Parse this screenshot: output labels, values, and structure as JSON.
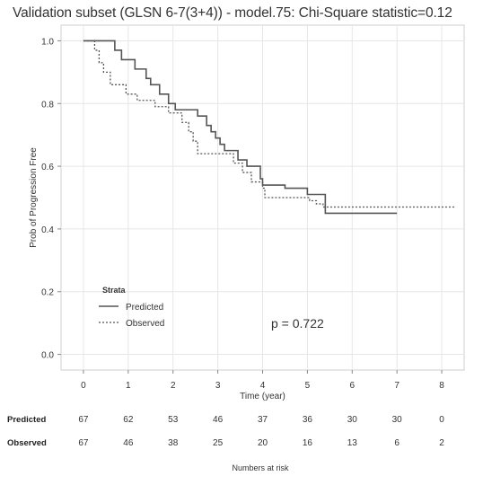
{
  "chart_data": {
    "type": "line",
    "title": "Validation subset (GLSN 6-7(3+4)) - model.75: Chi-Square statistic=0.12",
    "xlabel": "Time (year)",
    "ylabel": "Prob of Progression Free",
    "xlim": [
      -0.5,
      8.5
    ],
    "ylim": [
      -0.05,
      1.05
    ],
    "x_ticks": [
      "0",
      "1",
      "2",
      "3",
      "4",
      "5",
      "6",
      "7",
      "8"
    ],
    "y_ticks": [
      "0.0",
      "0.2",
      "0.4",
      "0.6",
      "0.8",
      "1.0"
    ],
    "grid": true,
    "legend": {
      "title": "Strata",
      "placement": "bottom-left",
      "entries": [
        "Predicted",
        "Observed"
      ]
    },
    "annotation": "p = 0.722",
    "series": [
      {
        "name": "Predicted",
        "style": "solid",
        "color": "#555555",
        "x": [
          0,
          0.6,
          0.7,
          0.85,
          1.0,
          1.15,
          1.4,
          1.5,
          1.7,
          1.9,
          2.05,
          2.25,
          2.55,
          2.75,
          2.85,
          2.95,
          3.05,
          3.15,
          3.45,
          3.65,
          3.95,
          4.0,
          4.5,
          5.0,
          5.2,
          5.4,
          7.0
        ],
        "y": [
          1.0,
          1.0,
          0.97,
          0.94,
          0.94,
          0.91,
          0.88,
          0.86,
          0.83,
          0.8,
          0.78,
          0.78,
          0.76,
          0.73,
          0.71,
          0.69,
          0.67,
          0.65,
          0.62,
          0.6,
          0.56,
          0.54,
          0.53,
          0.51,
          0.51,
          0.45,
          0.45
        ]
      },
      {
        "name": "Observed",
        "style": "dotted",
        "color": "#555555",
        "x": [
          0,
          0.25,
          0.35,
          0.45,
          0.6,
          0.95,
          1.2,
          1.6,
          1.9,
          2.2,
          2.35,
          2.45,
          2.55,
          3.35,
          3.55,
          3.75,
          4.0,
          4.05,
          5.0,
          5.05,
          5.2,
          5.35,
          8.3
        ],
        "y": [
          1.0,
          0.97,
          0.93,
          0.9,
          0.86,
          0.83,
          0.81,
          0.79,
          0.77,
          0.74,
          0.71,
          0.68,
          0.64,
          0.61,
          0.58,
          0.55,
          0.53,
          0.5,
          0.5,
          0.49,
          0.48,
          0.47,
          0.47
        ]
      }
    ],
    "risk_table": {
      "caption": "Numbers at risk",
      "rows": [
        {
          "label": "Predicted",
          "values": [
            "67",
            "62",
            "53",
            "46",
            "37",
            "36",
            "30",
            "30",
            "0"
          ]
        },
        {
          "label": "Observed",
          "values": [
            "67",
            "46",
            "38",
            "25",
            "20",
            "16",
            "13",
            "6",
            "2"
          ]
        }
      ]
    }
  }
}
